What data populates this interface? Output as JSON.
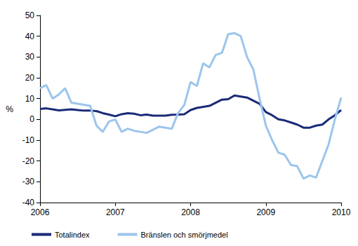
{
  "chart_data": {
    "type": "line",
    "ylabel": "%",
    "categories": [
      "2006",
      null,
      null,
      null,
      null,
      null,
      null,
      null,
      null,
      null,
      null,
      null,
      "2007",
      null,
      null,
      null,
      null,
      null,
      null,
      null,
      null,
      null,
      null,
      null,
      "2008",
      null,
      null,
      null,
      null,
      null,
      null,
      null,
      null,
      null,
      null,
      null,
      "2009",
      null,
      null,
      null,
      null,
      null,
      null,
      null,
      null,
      null,
      null,
      null,
      "2010"
    ],
    "series": [
      {
        "name": "Totalindex",
        "color": "#1a2a78",
        "values": [
          5,
          5.3,
          4.8,
          4.3,
          4.6,
          4.8,
          4.5,
          4.2,
          4.2,
          4,
          3,
          2.3,
          1.5,
          2.5,
          3,
          2.7,
          2,
          2.3,
          1.8,
          1.8,
          1.8,
          2.2,
          2.3,
          2.5,
          4.5,
          5.5,
          6,
          6.5,
          8,
          9.5,
          9.7,
          11.5,
          11,
          10.5,
          9,
          7.5,
          3.5,
          2,
          0,
          -0.5,
          -1.5,
          -2.5,
          -4,
          -4,
          -3,
          -2.5,
          0,
          2,
          4.5
        ]
      },
      {
        "name": "Bränslen och smörjmedel",
        "color": "#9cc5ec",
        "values": [
          15,
          16.5,
          10,
          12,
          15,
          8,
          7.5,
          7,
          6.5,
          -3,
          -6,
          -1,
          0,
          -6,
          -4.5,
          -5.5,
          -6,
          -6.5,
          -5,
          -3.5,
          -4,
          -4.5,
          3,
          7,
          18,
          16,
          27,
          25,
          31,
          32,
          41,
          41.5,
          40,
          30,
          24,
          10,
          -3,
          -10,
          -16,
          -17,
          -22,
          -22.5,
          -28.5,
          -27,
          -28,
          -20,
          -12,
          0,
          10.5
        ]
      }
    ],
    "ylim": [
      -40,
      50
    ],
    "yticks": [
      -40,
      -30,
      -20,
      -10,
      0,
      10,
      20,
      30,
      40,
      50
    ],
    "grid": false,
    "legend": "bottom"
  }
}
